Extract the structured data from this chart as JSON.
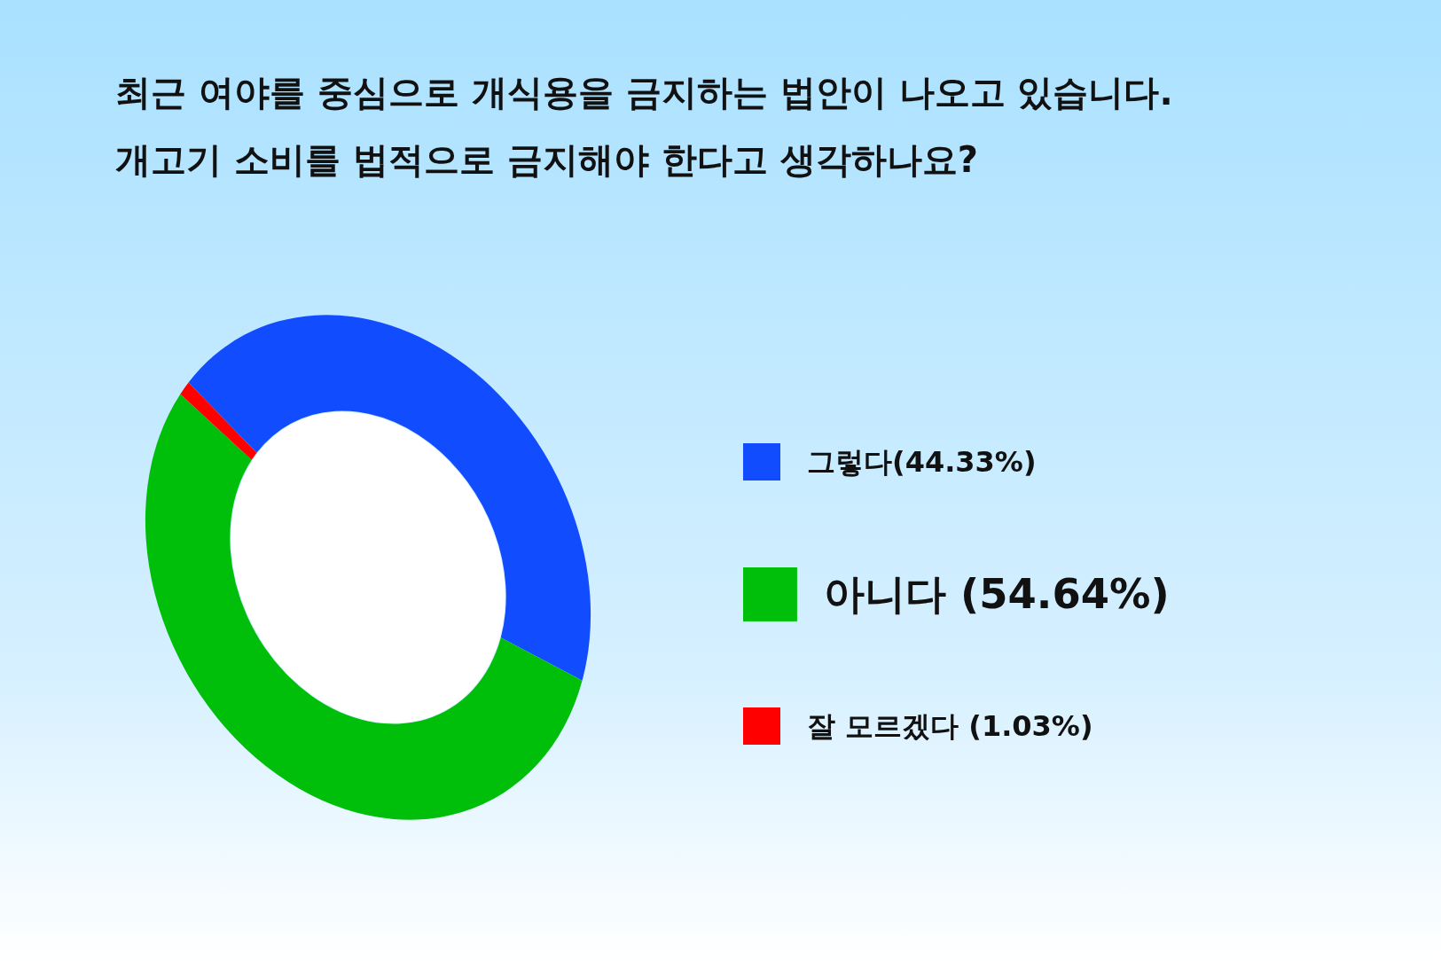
{
  "chart_data": {
    "type": "donut",
    "title": "최근 여야를 중심으로 개식용을 금지하는 법안이 나오고 있습니다.\n개고기 소비를 법적으로 금지해야 한다고 생각하나요?",
    "categories": [
      "그렇다(44.33%)",
      "아니다 (54.64%)",
      "잘 모르겠다 (1.03%)"
    ],
    "values": [
      44.33,
      54.64,
      1.03
    ],
    "colors": [
      "#114cff",
      "#00bf0a",
      "#ff0000"
    ],
    "legend": "right"
  }
}
